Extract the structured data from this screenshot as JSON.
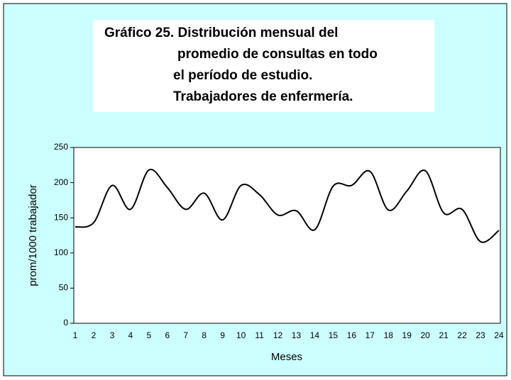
{
  "chart_data": {
    "type": "line",
    "title": [
      "Gráfico  25. Distribución mensual del",
      "promedio de consultas en todo",
      "el período de estudio.",
      "Trabajadores de enfermería."
    ],
    "x_label": "Meses",
    "y_label": "prom/1000 trabajador",
    "categories": [
      "1",
      "2",
      "3",
      "4",
      "5",
      "6",
      "7",
      "8",
      "9",
      "10",
      "11",
      "12",
      "13",
      "14",
      "15",
      "16",
      "17",
      "18",
      "19",
      "20",
      "21",
      "22",
      "23",
      "24"
    ],
    "values": [
      137,
      143,
      196,
      162,
      218,
      193,
      162,
      185,
      147,
      196,
      183,
      154,
      160,
      133,
      195,
      196,
      216,
      161,
      188,
      217,
      157,
      162,
      116,
      132
    ],
    "color": "#000000",
    "ylim": [
      0,
      250
    ],
    "yticks": [
      0,
      50,
      100,
      150,
      200,
      250
    ],
    "grid": false
  }
}
